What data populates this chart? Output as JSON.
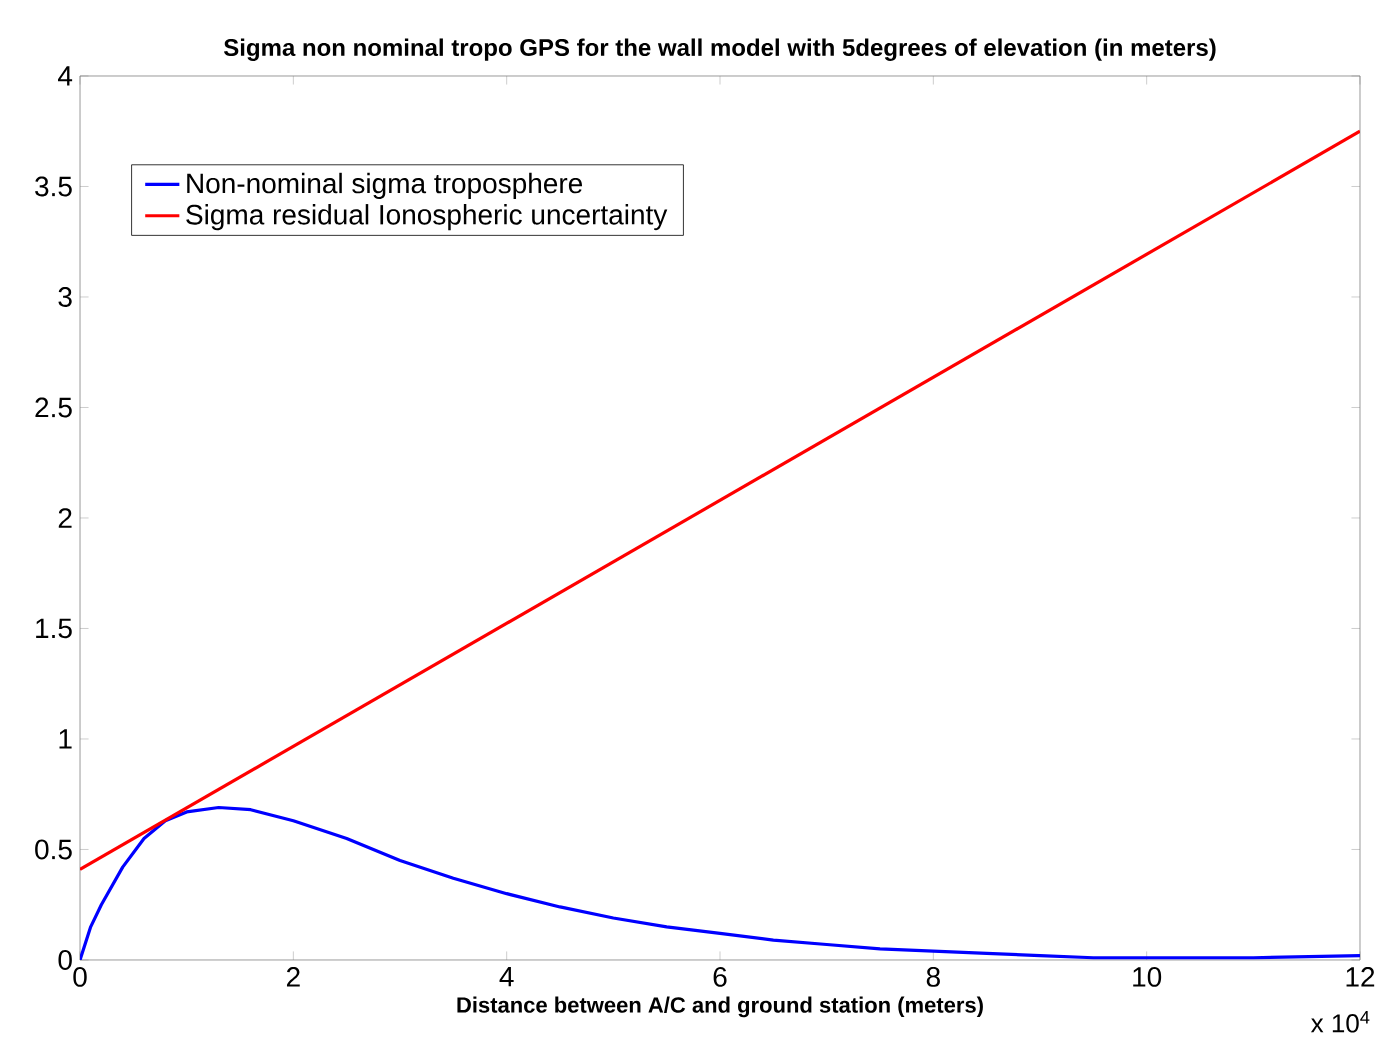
{
  "chart_data": {
    "type": "line",
    "title": "Sigma non nominal tropo GPS for the wall model with 5degrees of elevation (in meters)",
    "xlabel": "Distance between A/C and ground station (meters)",
    "annotations": [
      "x 10$^{4}$"
    ],
    "xlim": [
      0,
      12
    ],
    "xticks": [
      0,
      2,
      4,
      6,
      8,
      10,
      12
    ],
    "ylim": [
      0,
      4
    ],
    "yticks": [
      0,
      0.5,
      1,
      1.5,
      2,
      2.5,
      3,
      3.5,
      4
    ],
    "legend": "top left",
    "grid": false,
    "series": [
      {
        "name": "Non-nominal sigma troposphere",
        "color": "#0000ff",
        "x": [
          0,
          0.1,
          0.2,
          0.4,
          0.6,
          0.8,
          1.0,
          1.3,
          1.6,
          2,
          2.5,
          3,
          3.5,
          4,
          4.5,
          5,
          5.5,
          6,
          6.5,
          7,
          7.5,
          8,
          8.5,
          9,
          9.5,
          10,
          11,
          12
        ],
        "values": [
          0,
          0.15,
          0.25,
          0.42,
          0.55,
          0.63,
          0.67,
          0.69,
          0.68,
          0.63,
          0.55,
          0.45,
          0.37,
          0.3,
          0.24,
          0.19,
          0.15,
          0.12,
          0.09,
          0.07,
          0.05,
          0.04,
          0.03,
          0.02,
          0.01,
          0.01,
          0.01,
          0.02
        ]
      },
      {
        "name": "Sigma residual Ionospheric uncertainty",
        "color": "#ff0000",
        "x": [
          0,
          12
        ],
        "values": [
          0.41,
          3.75
        ]
      }
    ]
  }
}
